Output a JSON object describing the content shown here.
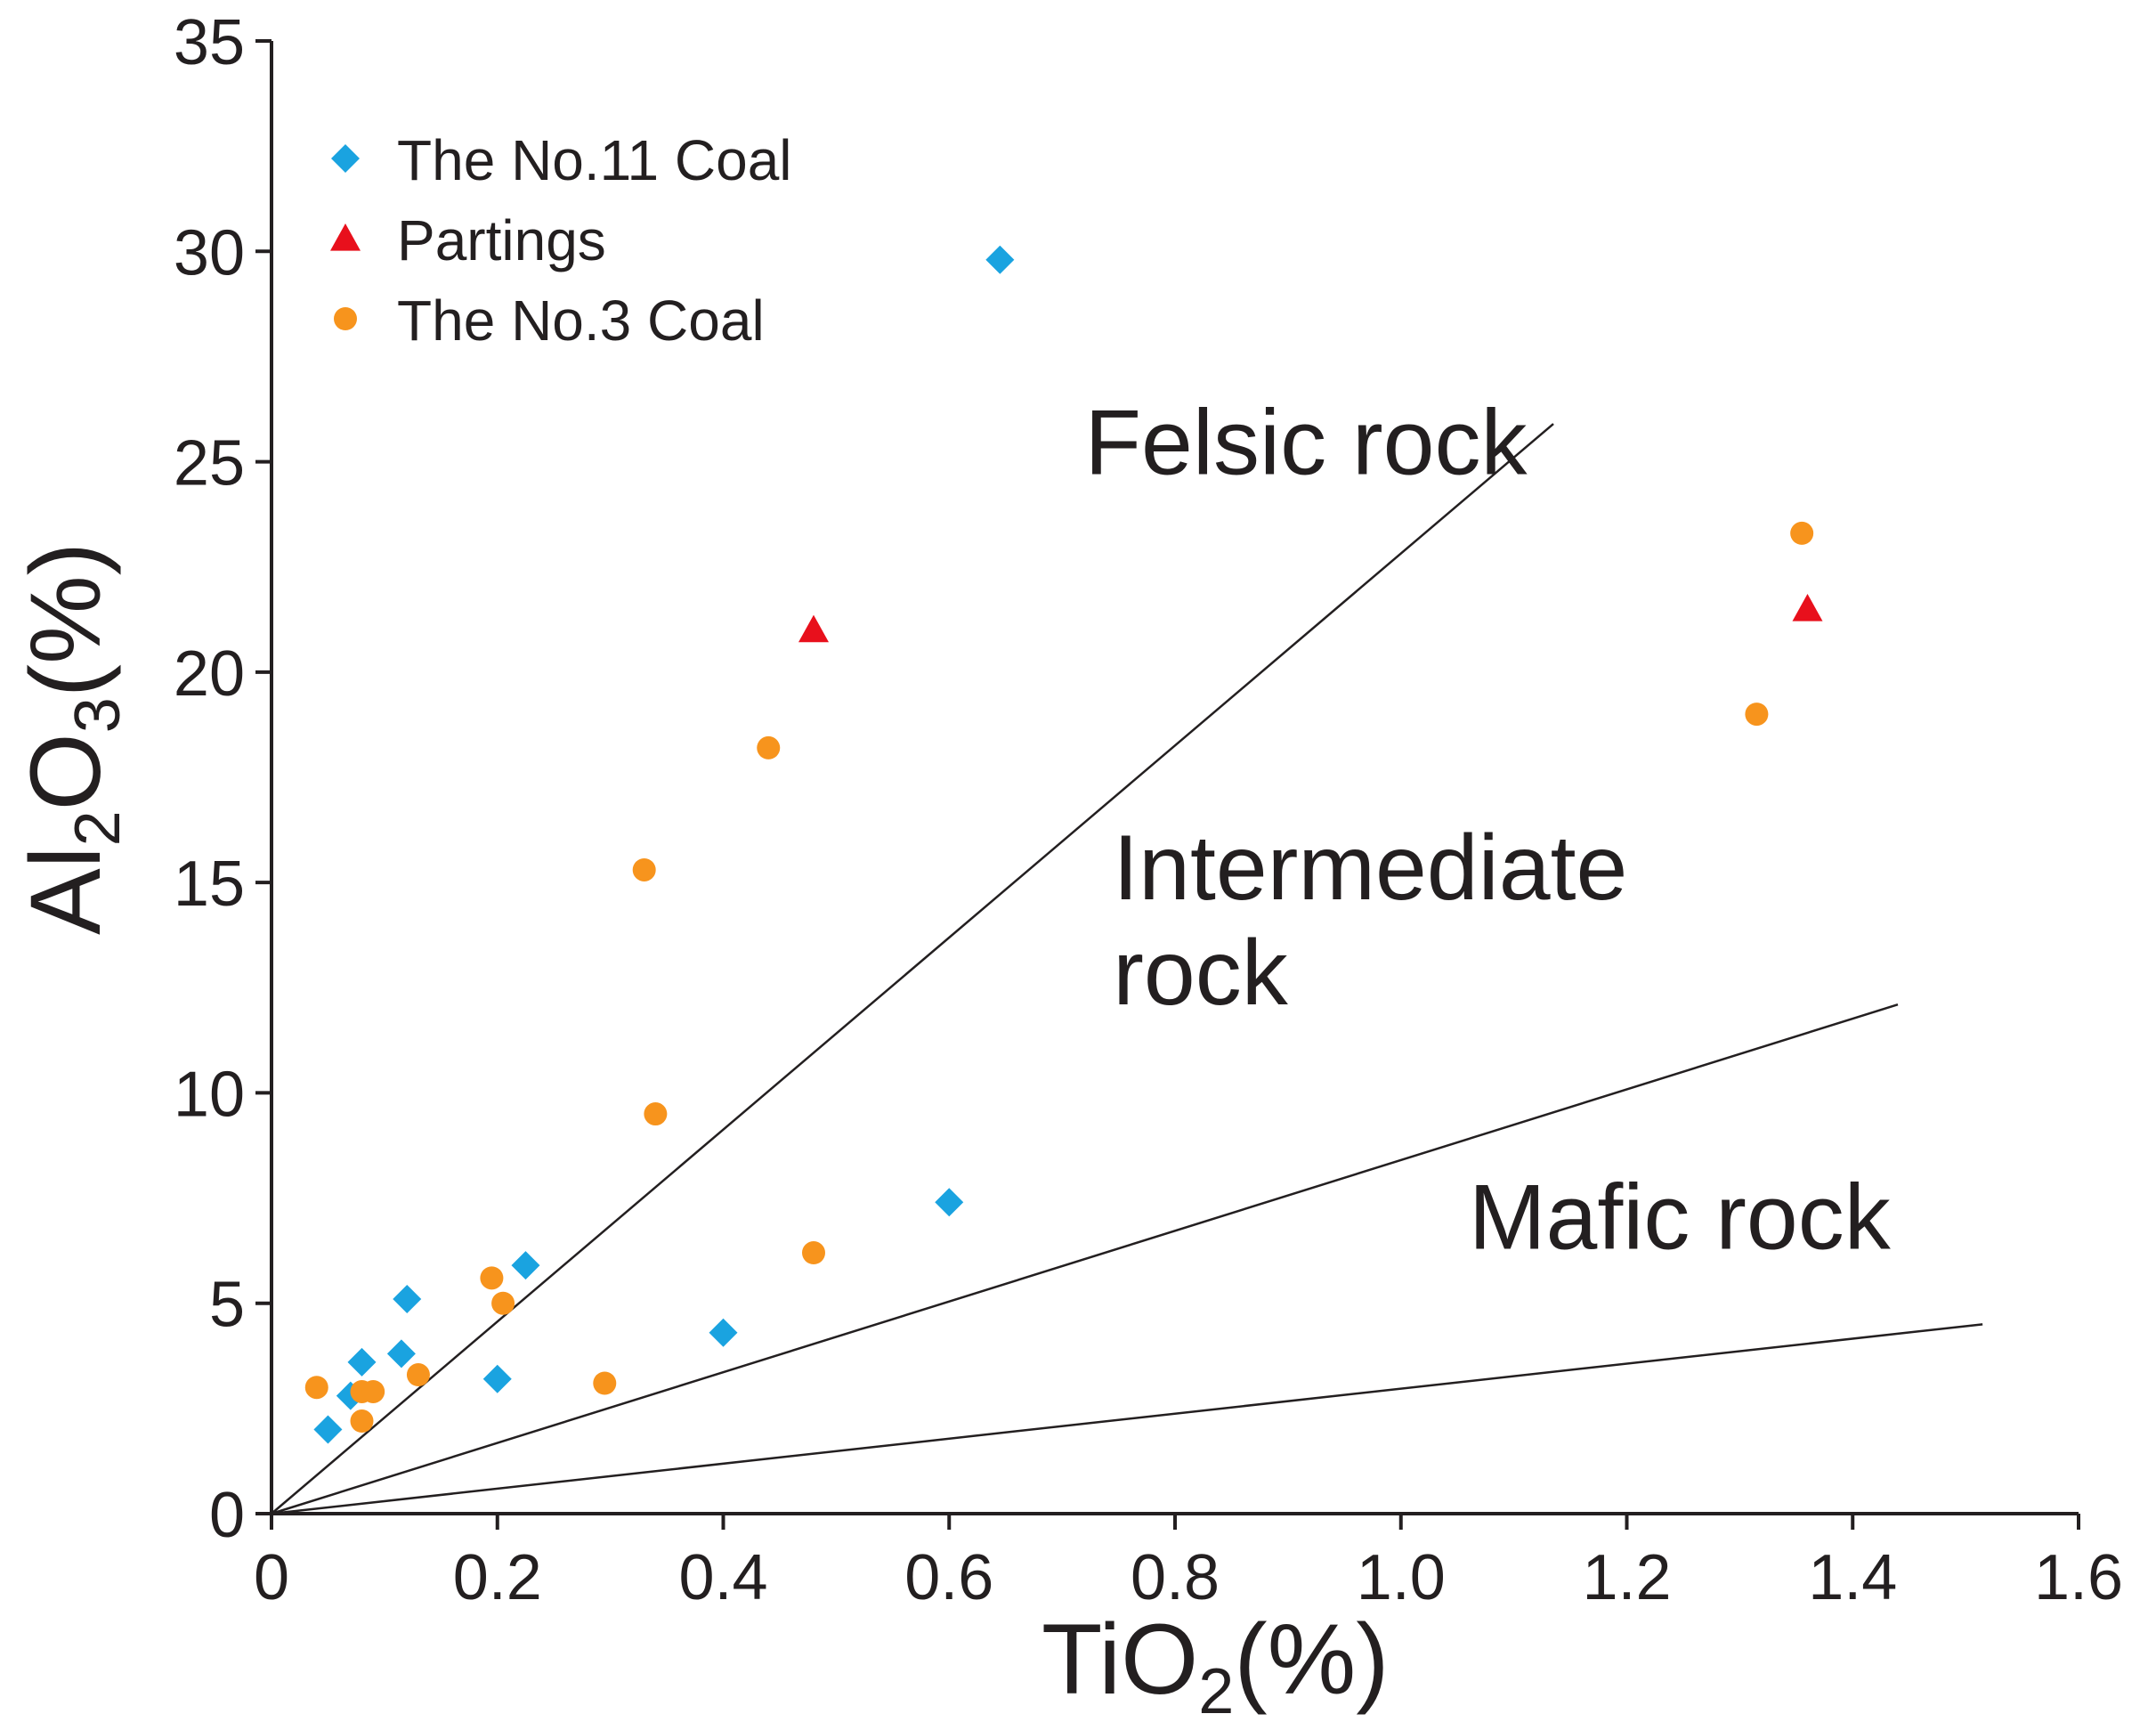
{
  "chart_data": {
    "type": "scatter",
    "title": "",
    "xlabel": {
      "main": "TiO",
      "sub": "2",
      "suffix": "(%)"
    },
    "ylabel": {
      "main": "Al",
      "sub1": "2",
      "mid": "O",
      "sub2": "3",
      "suffix": "(%)"
    },
    "xlim": [
      0,
      1.6
    ],
    "ylim": [
      0,
      35
    ],
    "xticks": [
      0,
      0.2,
      0.4,
      0.6,
      0.8,
      1.0,
      1.2,
      1.4,
      1.6
    ],
    "xtick_labels": [
      "0",
      "0.2",
      "0.4",
      "0.6",
      "0.8",
      "1.0",
      "1.2",
      "1.4",
      "1.6"
    ],
    "yticks": [
      0,
      5,
      10,
      15,
      20,
      25,
      30,
      35
    ],
    "ytick_labels": [
      "0",
      "5",
      "10",
      "15",
      "20",
      "25",
      "30",
      "35"
    ],
    "grid": false,
    "legend_position": "top-left",
    "series": [
      {
        "name": "The No.11 Coal",
        "marker": "diamond",
        "color": "#1aa3e0",
        "points": [
          [
            0.05,
            2.0
          ],
          [
            0.07,
            2.8
          ],
          [
            0.08,
            3.6
          ],
          [
            0.115,
            3.8
          ],
          [
            0.12,
            5.1
          ],
          [
            0.2,
            3.2
          ],
          [
            0.225,
            5.9
          ],
          [
            0.4,
            4.3
          ],
          [
            0.6,
            7.4
          ],
          [
            0.645,
            29.8
          ]
        ]
      },
      {
        "name": "Partings",
        "marker": "triangle",
        "color": "#e8101c",
        "points": [
          [
            0.48,
            21.0
          ],
          [
            1.36,
            21.5
          ]
        ]
      },
      {
        "name": "The No.3 Coal",
        "marker": "circle",
        "color": "#f7941d",
        "points": [
          [
            0.04,
            3.0
          ],
          [
            0.08,
            2.2
          ],
          [
            0.08,
            2.9
          ],
          [
            0.09,
            2.9
          ],
          [
            0.13,
            3.3
          ],
          [
            0.195,
            5.6
          ],
          [
            0.205,
            5.0
          ],
          [
            0.295,
            3.1
          ],
          [
            0.33,
            15.3
          ],
          [
            0.34,
            9.5
          ],
          [
            0.44,
            18.2
          ],
          [
            0.48,
            6.2
          ],
          [
            1.315,
            19.0
          ],
          [
            1.355,
            23.3
          ]
        ]
      }
    ],
    "boundary_lines": [
      {
        "name": "felsic-intermediate",
        "from": [
          0,
          0
        ],
        "to": [
          1.135,
          25.9
        ]
      },
      {
        "name": "intermediate-mafic",
        "from": [
          0,
          0
        ],
        "to": [
          1.44,
          12.1
        ]
      },
      {
        "name": "mafic-lower",
        "from": [
          0,
          0
        ],
        "to": [
          1.515,
          4.5
        ]
      }
    ],
    "region_labels": [
      {
        "name": "felsic",
        "lines": [
          "Felsic rock"
        ],
        "at": [
          0.72,
          24.7
        ]
      },
      {
        "name": "intermediate",
        "lines": [
          "Intermediate",
          "rock"
        ],
        "at": [
          0.745,
          14.6
        ]
      },
      {
        "name": "mafic",
        "lines": [
          "Mafic rock"
        ],
        "at": [
          1.06,
          6.3
        ]
      }
    ]
  }
}
